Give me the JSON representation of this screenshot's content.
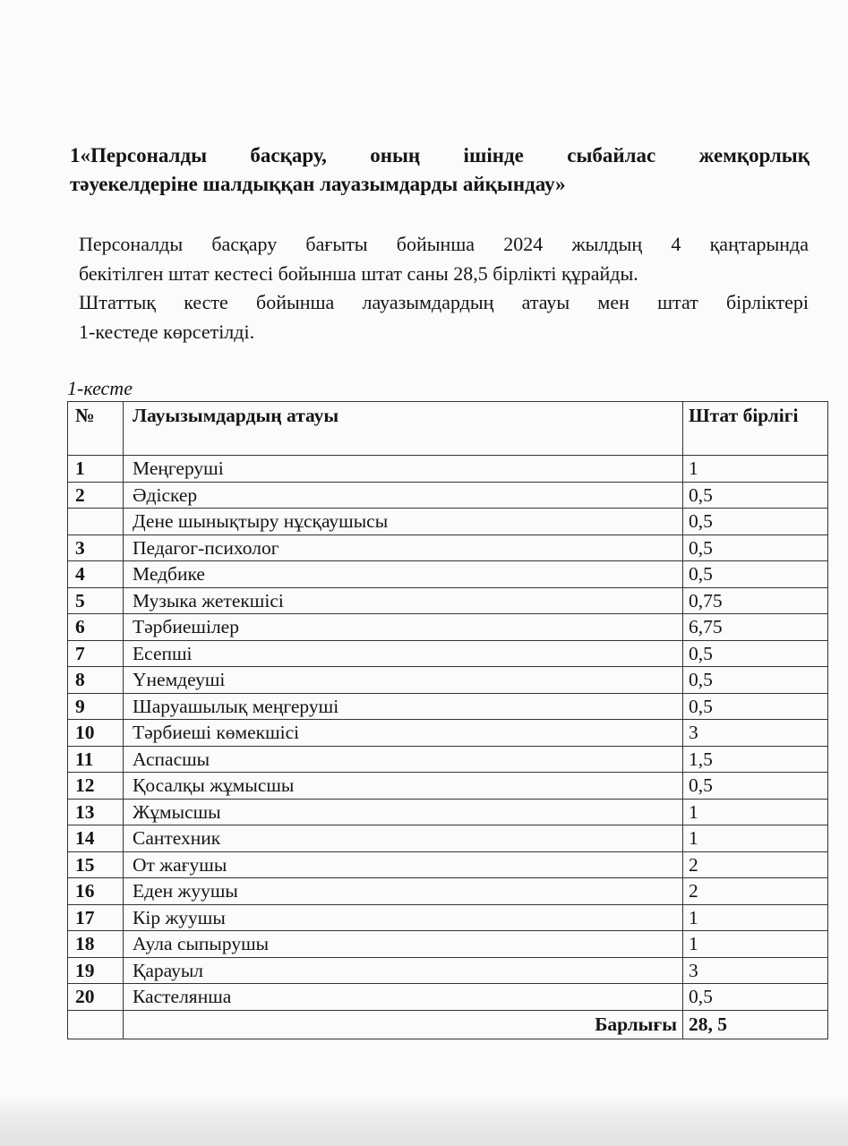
{
  "heading": {
    "line1": "1«Персоналды басқару, оның ішінде сыбайлас жемқорлық",
    "line2": "тәуекелдеріне шалдыққан лауазымдарды айқындау»"
  },
  "paragraphs": {
    "p1_line1": "Персоналды басқару бағыты бойынша 2024 жылдың 4 қаңтарында",
    "p1_line2": "бекітілген штат кестесі бойынша штат саны 28,5 бірлікті құрайды.",
    "p2_line1": "Штаттық кесте бойынша лауазымдардың атауы мен штат бірліктері",
    "p2_line2": "1-кестеде көрсетілді."
  },
  "table": {
    "caption": "1-кесте",
    "headers": [
      "№",
      "Лауызымдардың атауы",
      "Штат бірлігі"
    ],
    "rows": [
      {
        "no": "1",
        "name": "Меңгеруші",
        "units": "1"
      },
      {
        "no": "2",
        "name": "Әдіскер",
        "units": "0,5"
      },
      {
        "no": "",
        "name": "Дене шынықтыру нұсқаушысы",
        "units": "0,5"
      },
      {
        "no": "3",
        "name": "Педагог-психолог",
        "units": "0,5"
      },
      {
        "no": "4",
        "name": "Медбике",
        "units": "0,5"
      },
      {
        "no": "5",
        "name": "Музыка жетекшісі",
        "units": "0,75"
      },
      {
        "no": "6",
        "name": "Тәрбиешілер",
        "units": "6,75"
      },
      {
        "no": "7",
        "name": "Есепші",
        "units": "0,5"
      },
      {
        "no": "8",
        "name": "Үнемдеуші",
        "units": "0,5"
      },
      {
        "no": "9",
        "name": "Шаруашылық меңгеруші",
        "units": "0,5"
      },
      {
        "no": "10",
        "name": "Тәрбиеші көмекшісі",
        "units": "3"
      },
      {
        "no": "11",
        "name": "Аспасшы",
        "units": "1,5"
      },
      {
        "no": "12",
        "name": "Қосалқы жұмысшы",
        "units": "0,5"
      },
      {
        "no": "13",
        "name": "Жұмысшы",
        "units": "1"
      },
      {
        "no": "14",
        "name": "Сантехник",
        "units": "1"
      },
      {
        "no": "15",
        "name": "От жағушы",
        "units": "2"
      },
      {
        "no": "16",
        "name": "Еден жуушы",
        "units": "2"
      },
      {
        "no": "17",
        "name": "Кір жуушы",
        "units": "1"
      },
      {
        "no": "18",
        "name": "Аула сыпырушы",
        "units": "1"
      },
      {
        "no": "19",
        "name": "Қарауыл",
        "units": "3"
      },
      {
        "no": "20",
        "name": "Кастелянша",
        "units": "0,5"
      }
    ],
    "total_label": "Барлығы",
    "total_value": "28, 5"
  }
}
